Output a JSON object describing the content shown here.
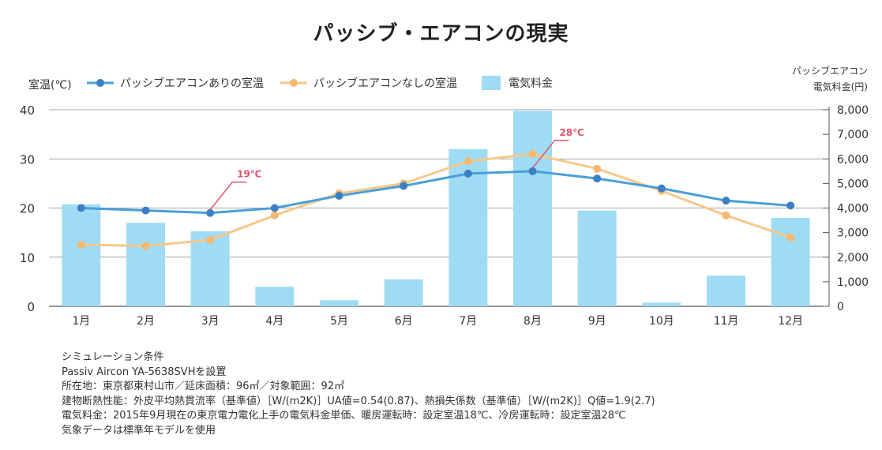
{
  "colors": {
    "blue": "#4a9fd8",
    "blue_dot": "#3b7fc4",
    "orange": "#f7c88a",
    "orange_dot": "#f5b870",
    "bar": "#9fdcf3",
    "annotation": "#e0556a",
    "grid": "#555555"
  },
  "chart_data": {
    "type": "bar+line",
    "title": "パッシブ・エアコンの現実",
    "categories": [
      "1月",
      "2月",
      "3月",
      "4月",
      "5月",
      "6月",
      "7月",
      "8月",
      "9月",
      "10月",
      "11月",
      "12月"
    ],
    "y_left": {
      "label": "室温(℃)",
      "range": [
        0,
        40
      ],
      "ticks": [
        0,
        10,
        20,
        30,
        40
      ]
    },
    "y_right": {
      "label_lines": [
        "パッシブエアコン",
        "電気料金(円)"
      ],
      "range": [
        0,
        8000
      ],
      "ticks": [
        "0",
        "1,000",
        "2,000",
        "3,000",
        "4,000",
        "5,000",
        "6,000",
        "7,000",
        "8,000"
      ]
    },
    "series": [
      {
        "name": "パッシブエアコンありの室温",
        "type": "line",
        "axis": "left",
        "values": [
          20,
          19.5,
          19,
          20,
          22.5,
          24.5,
          27,
          27.5,
          26,
          24,
          21.5,
          20.5
        ]
      },
      {
        "name": "パッシブエアコンなしの室温",
        "type": "line",
        "axis": "left",
        "values": [
          12.5,
          12.3,
          13.5,
          18.5,
          23,
          25,
          29.5,
          31,
          28,
          23.5,
          18.5,
          14
        ]
      },
      {
        "name": "電気料金",
        "type": "bar",
        "axis": "right",
        "values": [
          4150,
          3400,
          3050,
          800,
          250,
          1100,
          6400,
          7950,
          3900,
          150,
          1250,
          3600
        ]
      }
    ],
    "annotations": [
      {
        "text": "19℃",
        "month_index": 2
      },
      {
        "text": "28℃",
        "month_index": 7
      }
    ],
    "legend_position": "top"
  },
  "notes": [
    "シミュレーション条件",
    "Passiv Aircon YA-5638SVHを設置",
    "所在地：東京都東村山市／延床面積：96㎡／対象範囲：92㎡",
    "建物断熱性能：外皮平均熱貫流率（基準値）［W/(m2K)］UA値=0.54(0.87)、熱損失係数（基準値）［W/(m2K)］Q値=1.9(2.7)",
    "電気料金：2015年9月現在の東京電力電化上手の電気料金単価、暖房運転時：設定室温18℃、冷房運転時：設定室温28℃",
    "気象データは標準年モデルを使用"
  ]
}
